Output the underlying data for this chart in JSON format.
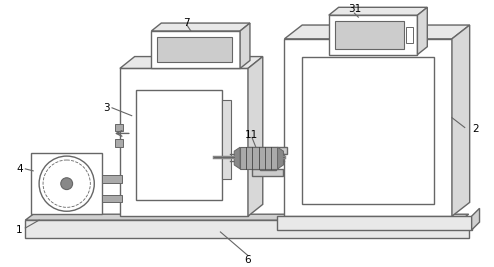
{
  "background_color": "#ffffff",
  "line_color": "#666666",
  "lw": 1.0,
  "font_size": 7.5
}
